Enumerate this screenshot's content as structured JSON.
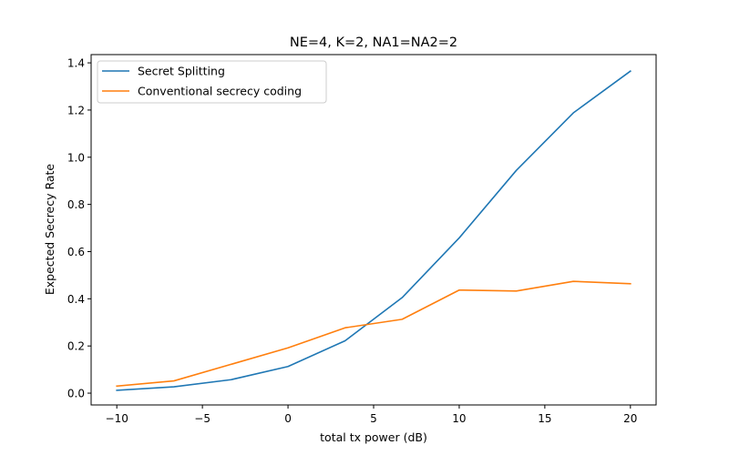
{
  "chart_data": {
    "type": "line",
    "title": "NE=4, K=2, NA1=NA2=2",
    "xlabel": "total tx power (dB)",
    "ylabel": "Expected Secrecy Rate",
    "x": [
      -10,
      -6.667,
      -3.333,
      0,
      3.333,
      6.667,
      10,
      13.333,
      16.667,
      20
    ],
    "xlim": [
      -11.5,
      21.5
    ],
    "ylim": [
      -0.05,
      1.435
    ],
    "xticks": [
      -10,
      -5,
      0,
      5,
      10,
      15,
      20
    ],
    "xtick_labels": [
      "−10",
      "−5",
      "0",
      "5",
      "10",
      "15",
      "20"
    ],
    "yticks": [
      0.0,
      0.2,
      0.4,
      0.6,
      0.8,
      1.0,
      1.2,
      1.4
    ],
    "ytick_labels": [
      "0.0",
      "0.2",
      "0.4",
      "0.6",
      "0.8",
      "1.0",
      "1.2",
      "1.4"
    ],
    "grid": false,
    "legend_position": "top-left",
    "series": [
      {
        "name": "Secret Splitting",
        "color": "#1f77b4",
        "values": [
          0.012,
          0.027,
          0.057,
          0.113,
          0.222,
          0.405,
          0.658,
          0.944,
          1.188,
          1.365
        ]
      },
      {
        "name": "Conventional secrecy coding",
        "color": "#ff7f0e",
        "values": [
          0.03,
          0.052,
          0.122,
          0.192,
          0.277,
          0.313,
          0.437,
          0.433,
          0.474,
          0.464
        ]
      }
    ]
  }
}
